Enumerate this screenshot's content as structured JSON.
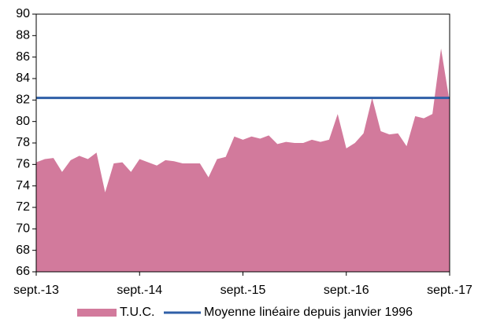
{
  "chart_data": {
    "type": "area",
    "categories": [
      "sept.-13",
      null,
      null,
      null,
      null,
      null,
      null,
      null,
      null,
      null,
      null,
      null,
      "sept.-14",
      null,
      null,
      null,
      null,
      null,
      null,
      null,
      null,
      null,
      null,
      null,
      "sept.-15",
      null,
      null,
      null,
      null,
      null,
      null,
      null,
      null,
      null,
      null,
      null,
      "sept.-16",
      null,
      null,
      null,
      null,
      null,
      null,
      null,
      null,
      null,
      null,
      null,
      "sept.-17"
    ],
    "series": [
      {
        "name": "T.U.C.",
        "color": "#d27a9c",
        "values": [
          76.2,
          76.5,
          76.6,
          75.3,
          76.4,
          76.8,
          76.5,
          77.1,
          73.4,
          76.1,
          76.2,
          75.3,
          76.5,
          76.2,
          75.9,
          76.4,
          76.3,
          76.1,
          76.1,
          76.1,
          74.8,
          76.5,
          76.7,
          78.6,
          78.3,
          78.6,
          78.4,
          78.7,
          77.9,
          78.1,
          78.0,
          78.0,
          78.3,
          78.1,
          78.3,
          80.7,
          77.5,
          78.0,
          78.9,
          82.2,
          79.1,
          78.8,
          78.9,
          77.7,
          80.5,
          80.3,
          80.7,
          86.8,
          81.8
        ]
      }
    ],
    "reference_line": {
      "name": "Moyenne linéaire depuis janvier 1996",
      "color": "#2f5fa7",
      "value": 82.2
    },
    "ylim": [
      66,
      90
    ],
    "yticks": [
      66,
      68,
      70,
      72,
      74,
      76,
      78,
      80,
      82,
      84,
      86,
      88,
      90
    ],
    "grid": false,
    "legend": "bottom"
  }
}
